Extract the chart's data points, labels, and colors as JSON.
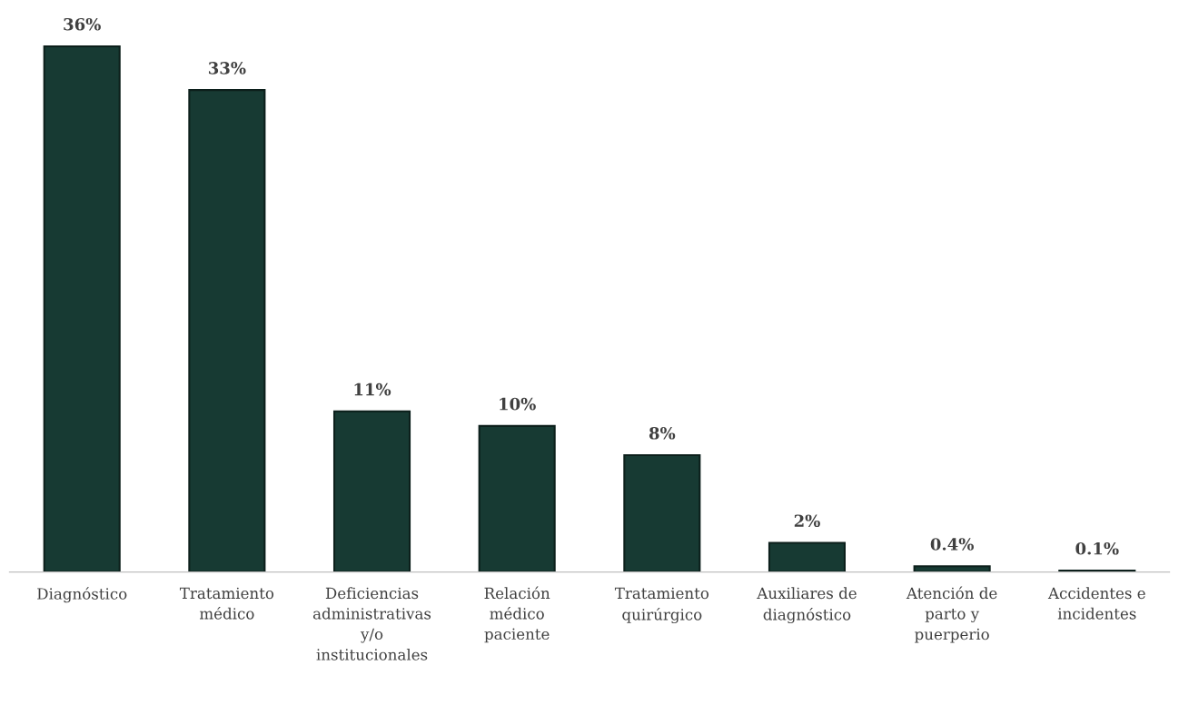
{
  "chart_data": {
    "type": "bar",
    "categories": [
      "Diagnóstico",
      "Tratamiento\nmédico",
      "Deficiencias\nadministrativas\ny/o\ninstitucionales",
      "Relación\nmédico\npaciente",
      "Tratamiento\nquirúrgico",
      "Auxiliares de\ndiagnóstico",
      "Atención de\nparto y\npuerperio",
      "Accidentes e\nincidentes"
    ],
    "values": [
      36,
      33,
      11,
      10,
      8,
      2,
      0.4,
      0.1
    ],
    "value_labels": [
      "36%",
      "33%",
      "11%",
      "10%",
      "8%",
      "2%",
      "0.4%",
      "0.1%"
    ],
    "color": "#173a33",
    "grid": false
  }
}
